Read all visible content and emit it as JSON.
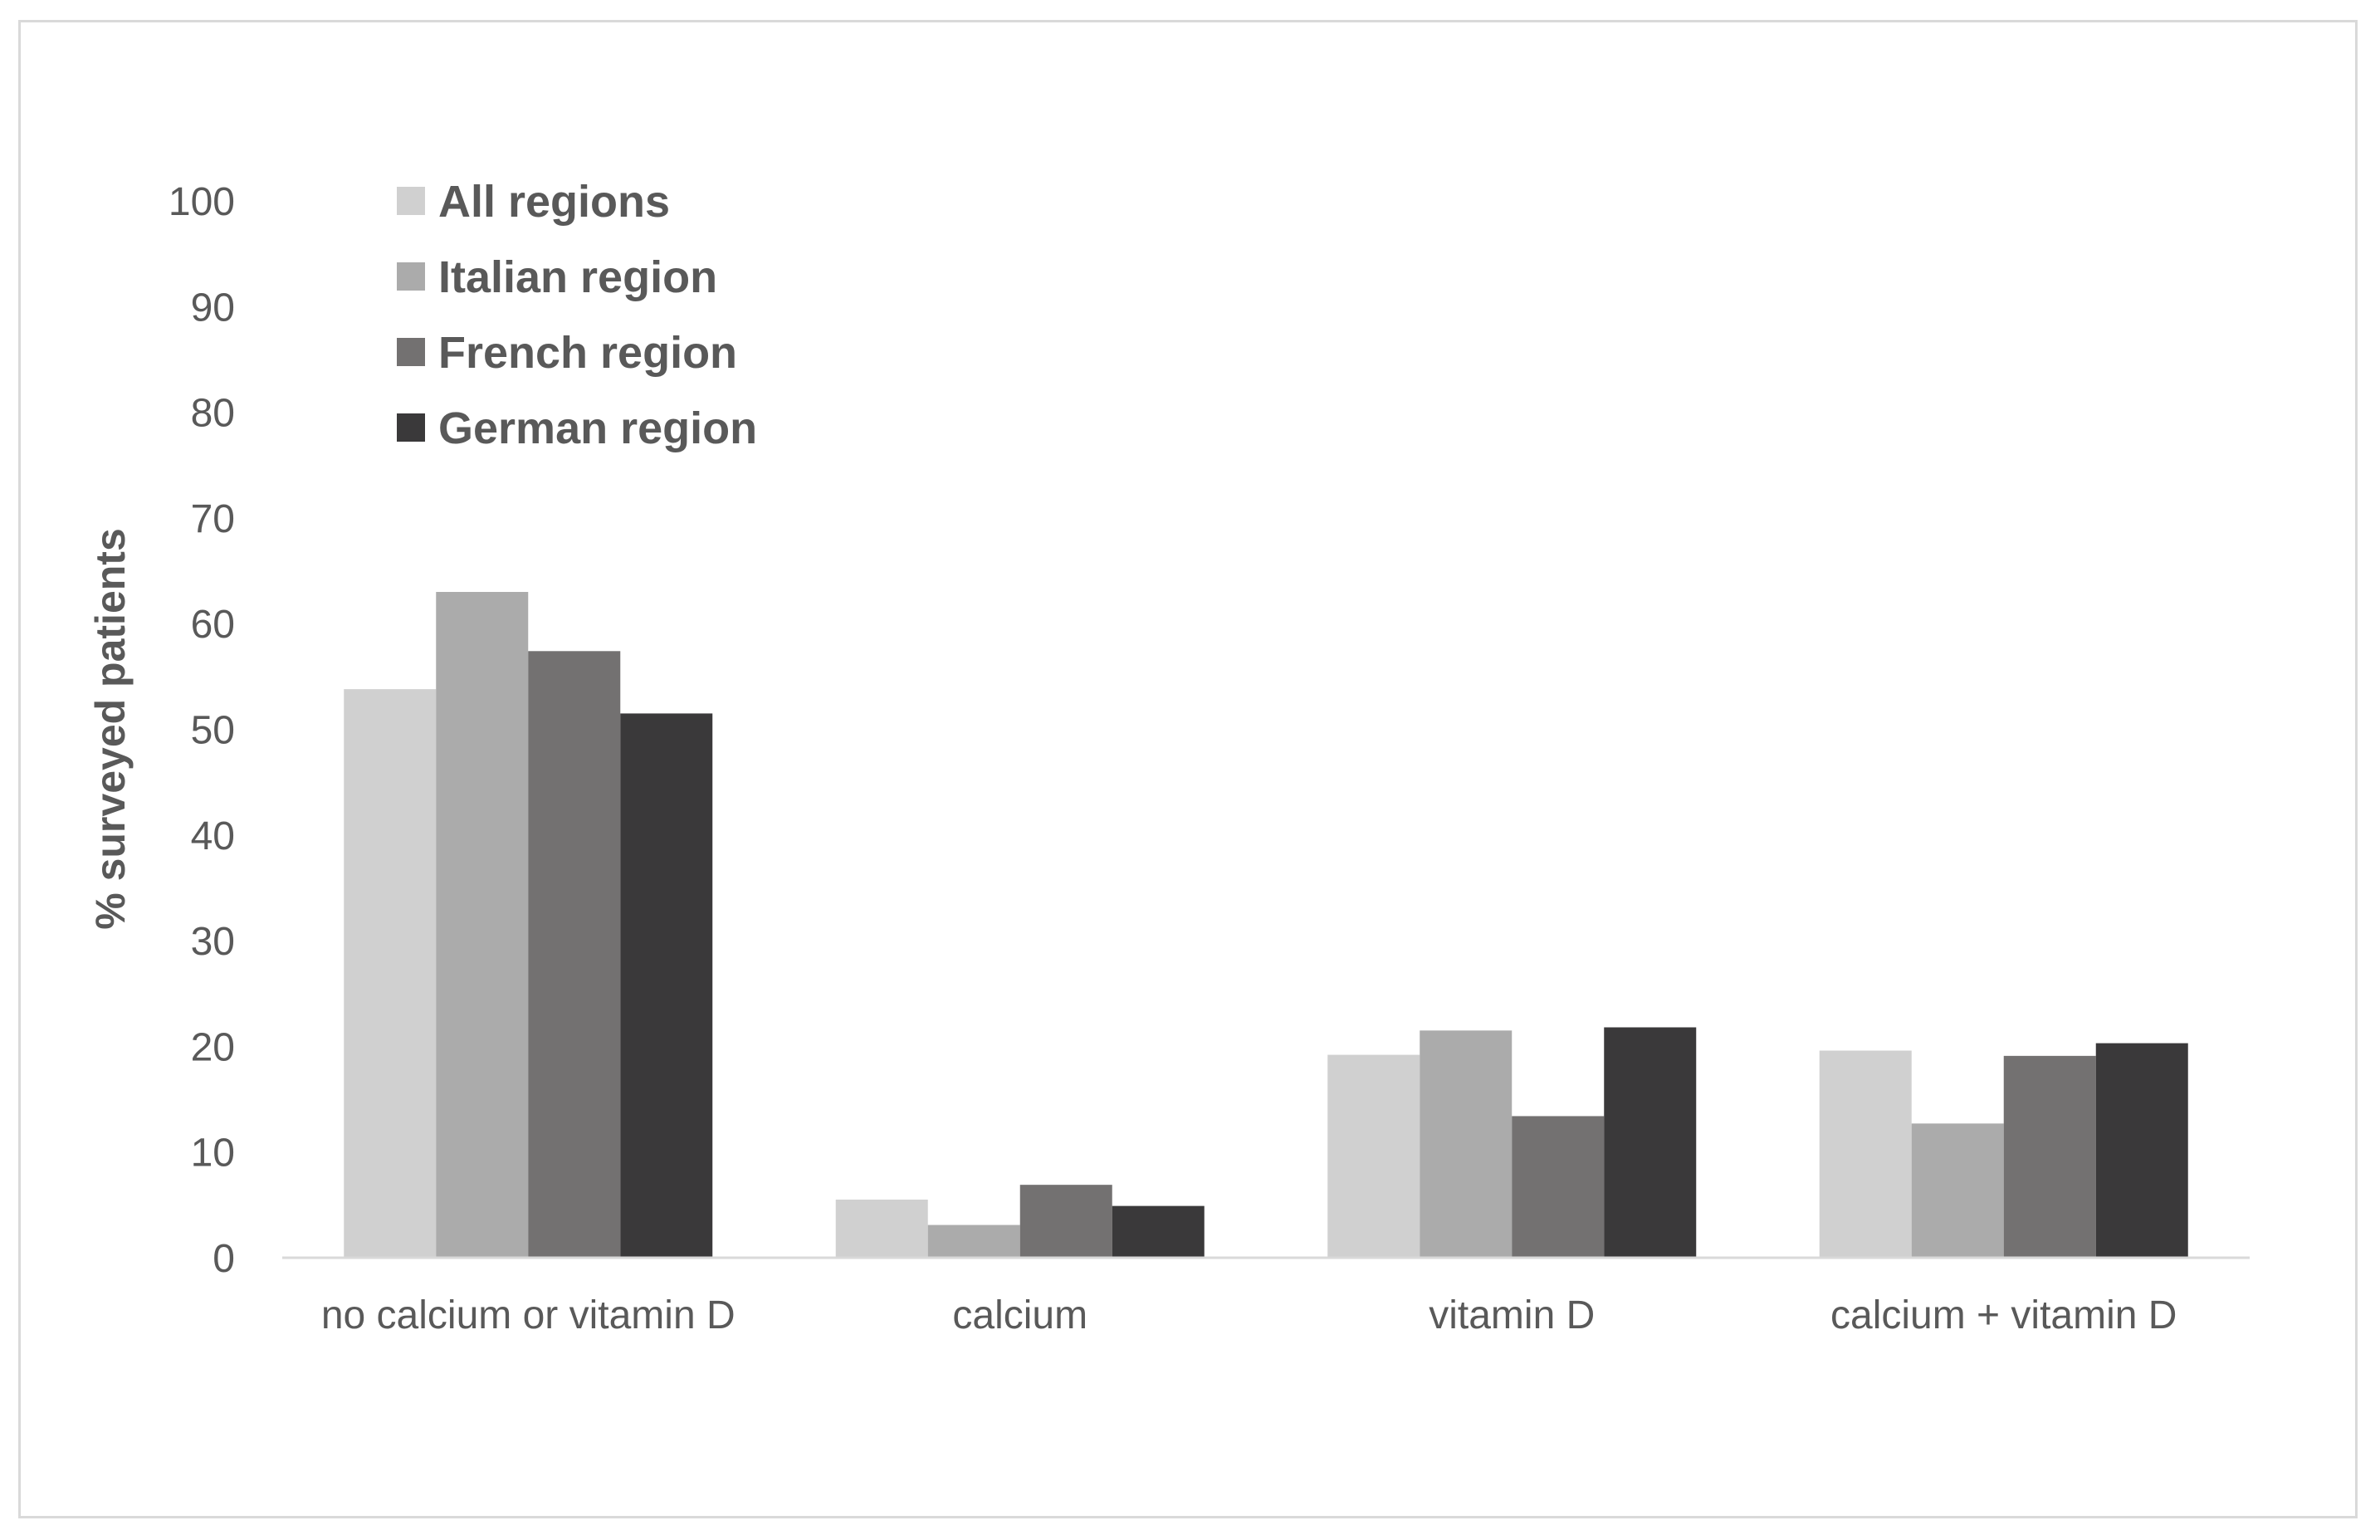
{
  "chart_data": {
    "type": "bar",
    "title": "",
    "xlabel": "",
    "ylabel": "% surveyed patients",
    "ylim": [
      0,
      100
    ],
    "yticks": [
      0,
      10,
      20,
      30,
      40,
      50,
      60,
      70,
      80,
      90,
      100
    ],
    "grid": false,
    "legend_position": "top-left",
    "categories": [
      "no calcium or vitamin D",
      "calcium",
      "vitamin D",
      "calcium + vitamin D"
    ],
    "series": [
      {
        "name": "All regions",
        "color": "#d0d0d0",
        "values": [
          53.8,
          5.5,
          19.2,
          19.6
        ]
      },
      {
        "name": "Italian region",
        "color": "#ababab",
        "values": [
          63.0,
          3.1,
          21.5,
          12.7
        ]
      },
      {
        "name": "French region",
        "color": "#737171",
        "values": [
          57.4,
          6.9,
          13.4,
          19.1
        ]
      },
      {
        "name": "German region",
        "color": "#3a393a",
        "values": [
          51.5,
          4.9,
          21.8,
          20.3
        ]
      }
    ]
  }
}
